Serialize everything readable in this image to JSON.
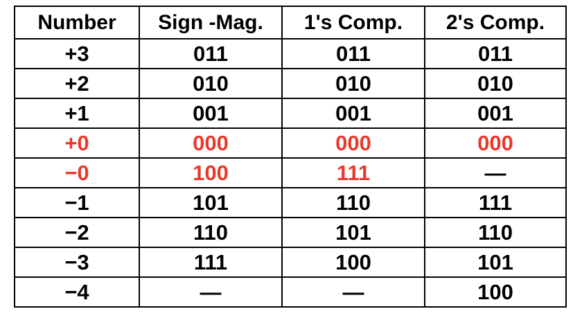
{
  "table": {
    "headers": [
      "Number",
      "Sign  -Mag.",
      "1's Comp.",
      "2's Comp."
    ],
    "rows": [
      {
        "number": "+3",
        "sign_mag": "011",
        "ones_comp": "011",
        "twos_comp": "011",
        "highlight": false
      },
      {
        "number": "+2",
        "sign_mag": "010",
        "ones_comp": "010",
        "twos_comp": "010",
        "highlight": false
      },
      {
        "number": "+1",
        "sign_mag": "001",
        "ones_comp": "001",
        "twos_comp": "001",
        "highlight": false
      },
      {
        "number": "+0",
        "sign_mag": "000",
        "ones_comp": "000",
        "twos_comp": "000",
        "highlight": true
      },
      {
        "number": "−0",
        "sign_mag": "100",
        "ones_comp": "111",
        "twos_comp": "—",
        "highlight": true
      },
      {
        "number": "−1",
        "sign_mag": "101",
        "ones_comp": "110",
        "twos_comp": "111",
        "highlight": false
      },
      {
        "number": "−2",
        "sign_mag": "110",
        "ones_comp": "101",
        "twos_comp": "110",
        "highlight": false
      },
      {
        "number": "−3",
        "sign_mag": "111",
        "ones_comp": "100",
        "twos_comp": "101",
        "highlight": false
      },
      {
        "number": "−4",
        "sign_mag": "—",
        "ones_comp": "—",
        "twos_comp": "100",
        "highlight": false
      }
    ]
  },
  "colors": {
    "text": "#000000",
    "highlight": "#e8392b",
    "border": "#000000",
    "background": "#ffffff"
  }
}
